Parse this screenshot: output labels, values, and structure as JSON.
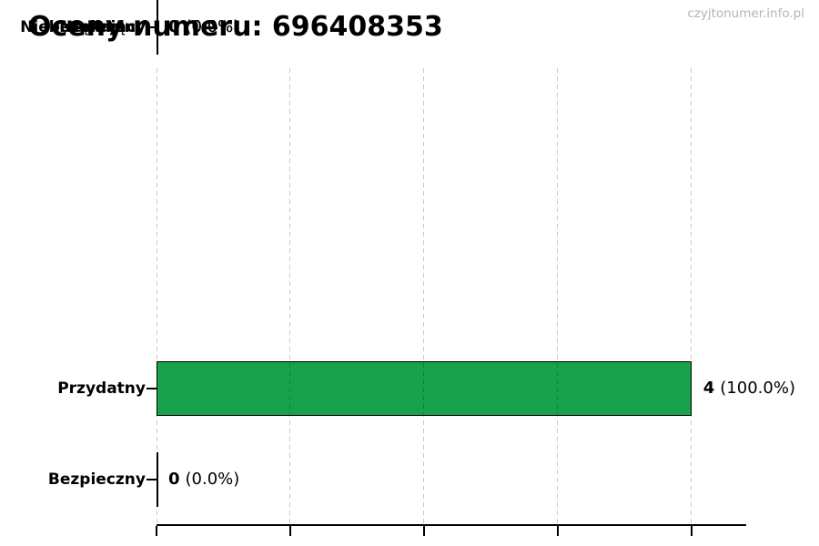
{
  "header": {
    "title": "Oceny numeru: 696408353",
    "watermark": "czyjtonumer.info.pl"
  },
  "chart_data": {
    "type": "bar",
    "orientation": "horizontal",
    "title": "Oceny numeru: 696408353",
    "categories": [
      "Przydatny",
      "Bezpieczny",
      "Neutralny",
      "Nękający",
      "Niebezpieczny"
    ],
    "values": [
      4,
      0,
      0,
      0,
      0
    ],
    "percentages": [
      100.0,
      0.0,
      0.0,
      0.0,
      0.0
    ],
    "value_labels": [
      {
        "count": "4",
        "percent": "(100.0%)"
      },
      {
        "count": "0",
        "percent": "(0.0%)"
      },
      {
        "count": "0",
        "percent": "(0.0%)"
      },
      {
        "count": "0",
        "percent": "(0.0%)"
      },
      {
        "count": "0",
        "percent": "(0.0%)"
      }
    ],
    "xlim": [
      0,
      4.41
    ],
    "x_ticks": [
      0,
      1,
      2,
      3,
      4
    ],
    "x_tick_labels_visible": false,
    "grid": "vertical-dashed",
    "legend": "none",
    "bar_color": "#18a24b",
    "bar_edge_color": "#000000"
  }
}
